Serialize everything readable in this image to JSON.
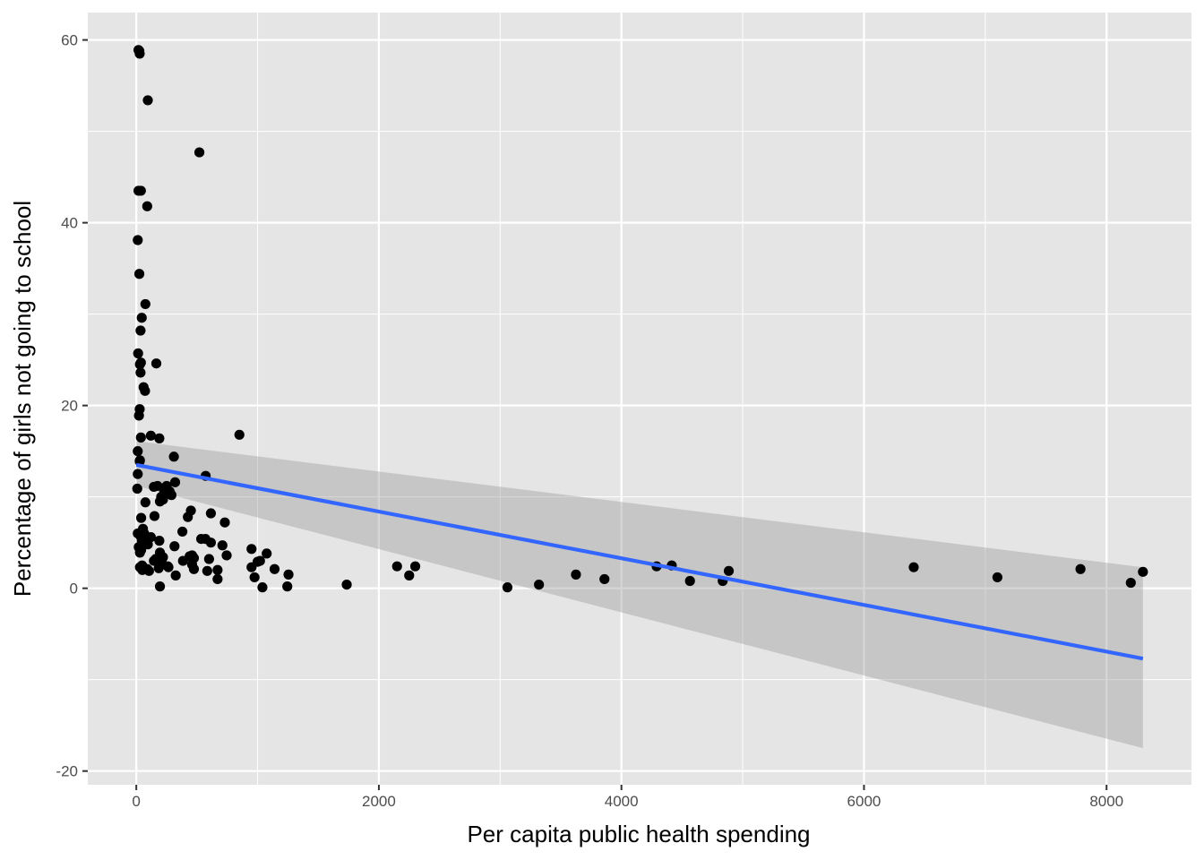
{
  "chart_data": {
    "type": "scatter",
    "title": "",
    "xlabel": "Per capita public health spending",
    "ylabel": "Percentage of girls not going to school",
    "xlim": [
      -400,
      8700
    ],
    "ylim": [
      -21.5,
      63
    ],
    "x_ticks": [
      0,
      2000,
      4000,
      6000,
      8000
    ],
    "x_tick_labels": [
      "0",
      "2000",
      "4000",
      "6000",
      "8000"
    ],
    "y_ticks": [
      -20,
      0,
      20,
      40,
      60
    ],
    "y_tick_labels": [
      "-20",
      "0",
      "20",
      "40",
      "60"
    ],
    "grid": true,
    "legend": "none",
    "colors": {
      "panel_background": "#e5e5e5",
      "grid": "#ffffff",
      "points": "#000000",
      "regression_line": "#3366ff",
      "confidence_band": "#999999"
    },
    "regression": {
      "method": "lm",
      "x": [
        0,
        8300
      ],
      "y": [
        13.5,
        -7.7
      ],
      "ci_lower": [
        11.2,
        -17.5
      ],
      "ci_upper": [
        16.1,
        2.3
      ]
    },
    "series": [
      {
        "x": [
          18,
          28,
          25,
          95,
          520,
          18,
          38,
          90,
          12,
          25,
          35,
          75,
          45,
          38,
          15,
          35,
          30,
          60,
          72,
          165,
          28,
          22,
          120,
          38,
          12,
          30,
          12,
          8,
          28,
          572,
          850,
          12,
          190,
          310,
          250,
          175,
          275,
          230,
          205,
          195,
          150,
          220,
          290,
          145,
          75,
          320,
          615,
          425,
          450,
          730,
          40,
          20,
          35,
          55,
          65,
          100,
          45,
          120,
          190,
          570,
          535,
          460,
          615,
          95,
          82,
          315,
          30,
          195,
          475,
          710,
          950,
          40,
          380,
          440,
          160,
          220,
          600,
          1075,
          745,
          30,
          48,
          1000,
          210,
          185,
          325,
          385,
          460,
          475,
          1020,
          50,
          105,
          585,
          1140,
          145,
          670,
          265,
          950,
          1255,
          2250,
          1245,
          1735,
          3060,
          3320,
          3625,
          4885,
          3860,
          4290,
          4415,
          4565,
          4835,
          6410,
          7100,
          7785,
          8200,
          8300,
          2150,
          2300,
          195,
          670,
          975,
          1040,
          260,
          90
        ],
        "y": [
          58.9,
          58.5,
          58.8,
          53.4,
          47.7,
          43.5,
          43.5,
          41.8,
          38.1,
          34.4,
          28.2,
          31.1,
          29.6,
          24.7,
          25.7,
          23.6,
          24.5,
          22.0,
          21.6,
          24.6,
          19.6,
          18.9,
          16.7,
          16.5,
          15.0,
          14.0,
          12.5,
          10.9,
          13.9,
          12.3,
          16.8,
          6.0,
          16.4,
          14.4,
          11.2,
          11.2,
          10.6,
          10.5,
          10.0,
          9.5,
          7.9,
          9.7,
          10.2,
          11.1,
          9.4,
          11.6,
          8.2,
          7.8,
          8.5,
          7.2,
          7.7,
          4.5,
          5.7,
          6.5,
          6.0,
          5.4,
          5.2,
          5.6,
          5.2,
          5.4,
          5.4,
          3.6,
          5.0,
          4.8,
          5.3,
          4.6,
          3.9,
          3.9,
          3.3,
          4.7,
          4.3,
          4.2,
          6.2,
          3.5,
          3.2,
          3.4,
          3.2,
          3.8,
          3.6,
          2.3,
          2.5,
          2.9,
          2.8,
          2.2,
          1.4,
          3.0,
          2.6,
          2.1,
          3.0,
          2.0,
          1.9,
          1.9,
          2.1,
          3.0,
          2.0,
          2.3,
          2.3,
          1.5,
          1.4,
          0.2,
          0.4,
          0.1,
          0.4,
          1.5,
          1.9,
          1.0,
          2.4,
          2.5,
          0.8,
          0.8,
          2.3,
          1.2,
          2.1,
          0.6,
          1.8,
          2.4,
          2.4,
          0.2,
          1.0,
          1.2,
          0.1,
          2.4,
          2.1
        ]
      }
    ]
  }
}
